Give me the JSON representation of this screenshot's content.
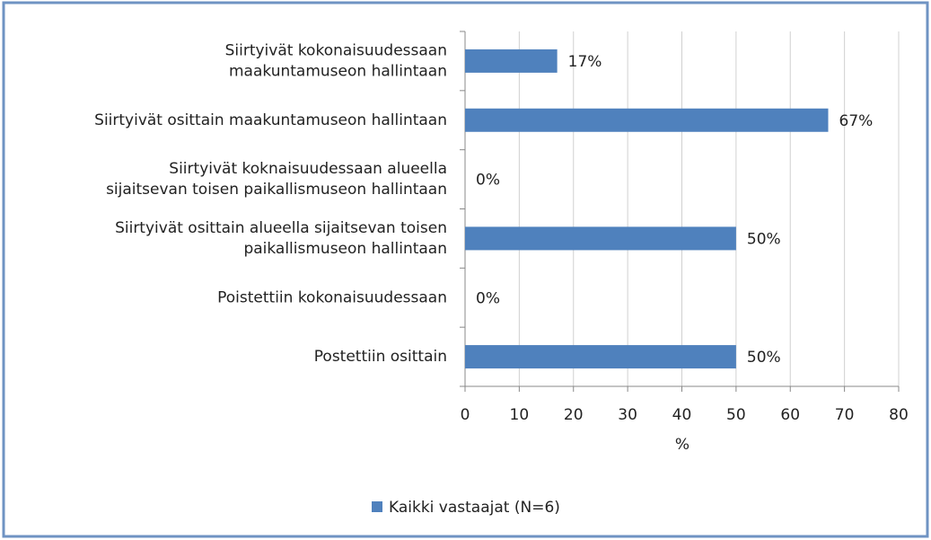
{
  "chart_data": {
    "type": "bar",
    "orientation": "horizontal",
    "categories": [
      "Siirtyivät kokonaisuudessaan\nmaakuntamuseon hallintaan",
      "Siirtyivät osittain maakuntamuseon hallintaan",
      "Siirtyivät koknaisuudessaan alueella\nsijaitsevan toisen paikallismuseon hallintaan",
      "Siirtyivät osittain alueella sijaitsevan toisen\npaikallismuseon hallintaan",
      "Poistettiin kokonaisuudessaan",
      "Postettiin osittain"
    ],
    "series": [
      {
        "name": "Kaikki vastaajat (N=6)",
        "color": "#4f81bd",
        "values": [
          17,
          67,
          0,
          50,
          0,
          50
        ],
        "value_labels": [
          "17%",
          "67%",
          "0%",
          "50%",
          "0%",
          "50%"
        ]
      }
    ],
    "xlabel": "%",
    "xlim": [
      0,
      80
    ],
    "xticks": [
      0,
      10,
      20,
      30,
      40,
      50,
      60,
      70,
      80
    ],
    "grid": true,
    "legend": "bottom"
  }
}
